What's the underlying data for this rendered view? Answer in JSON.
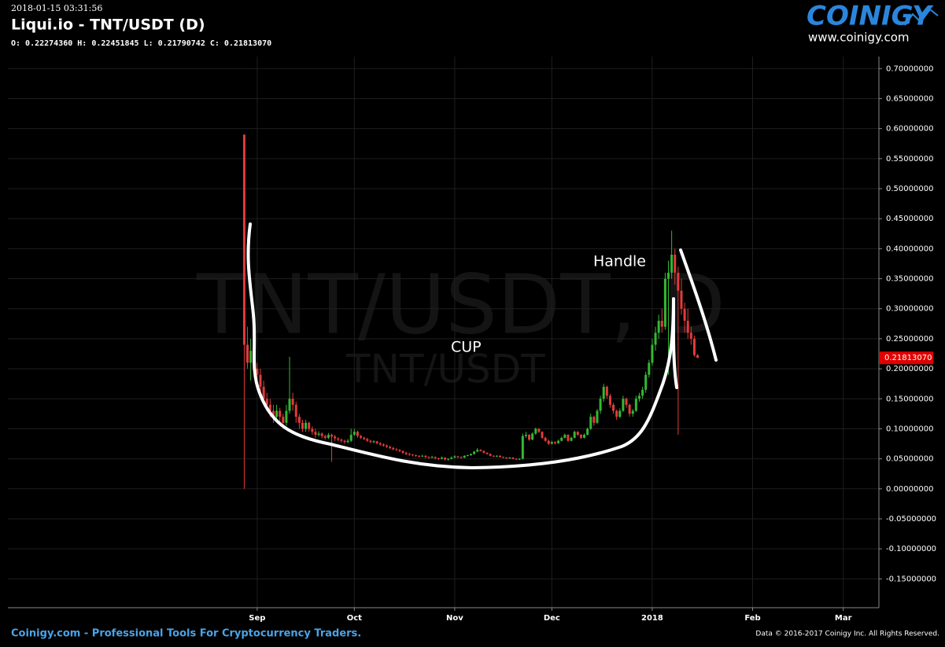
{
  "header": {
    "timestamp": "2018-01-15 03:31:56",
    "title": "Liqui.io - TNT/USDT (D)",
    "ohlc_line": "O: 0.22274360 H: 0.22451845 L: 0.21790742 C: 0.21813070"
  },
  "logo": {
    "brand": "COINIGY",
    "url": "www.coinigy.com"
  },
  "footer": {
    "left": "Coinigy.com - Professional Tools For Cryptocurrency Traders.",
    "right": "Data © 2016-2017 Coinigy Inc. All Rights Reserved."
  },
  "chart_data": {
    "type": "candlestick",
    "watermark": "TNT/USDT, D",
    "watermark_sub": "TNT/USDT",
    "annotations": [
      "Handle",
      "CUP"
    ],
    "up_color": "#33b833",
    "down_color": "#e33b3b",
    "grid": true,
    "last_price_label": "0.21813070",
    "xlim": [
      "2017-06-16",
      "2018-03-12"
    ],
    "xticks": [
      {
        "value": "2017-09-01",
        "label": "Sep"
      },
      {
        "value": "2017-10-01",
        "label": "Oct"
      },
      {
        "value": "2017-11-01",
        "label": "Nov"
      },
      {
        "value": "2017-12-01",
        "label": "Dec"
      },
      {
        "value": "2018-01-01",
        "label": "2018"
      },
      {
        "value": "2018-02-01",
        "label": "Feb"
      },
      {
        "value": "2018-03-01",
        "label": "Mar"
      }
    ],
    "ylim": [
      -0.198,
      0.72
    ],
    "yticks": [
      {
        "value": 0.7,
        "label": "0.70000000"
      },
      {
        "value": 0.65,
        "label": "0.65000000"
      },
      {
        "value": 0.6,
        "label": "0.60000000"
      },
      {
        "value": 0.55,
        "label": "0.55000000"
      },
      {
        "value": 0.5,
        "label": "0.50000000"
      },
      {
        "value": 0.45,
        "label": "0.45000000"
      },
      {
        "value": 0.4,
        "label": "0.40000000"
      },
      {
        "value": 0.35,
        "label": "0.35000000"
      },
      {
        "value": 0.3,
        "label": "0.30000000"
      },
      {
        "value": 0.25,
        "label": "0.25000000"
      },
      {
        "value": 0.2,
        "label": "0.20000000"
      },
      {
        "value": 0.15,
        "label": "0.15000000"
      },
      {
        "value": 0.1,
        "label": "0.10000000"
      },
      {
        "value": 0.05,
        "label": "0.05000000"
      },
      {
        "value": 0,
        "label": "0.00000000"
      },
      {
        "value": -0.05,
        "label": "-0.05000000"
      },
      {
        "value": -0.1,
        "label": "-0.10000000"
      },
      {
        "value": -0.15,
        "label": "-0.15000000"
      }
    ],
    "x": [
      "2017-08-28",
      "2017-08-29",
      "2017-08-30",
      "2017-08-31",
      "2017-09-01",
      "2017-09-02",
      "2017-09-03",
      "2017-09-04",
      "2017-09-05",
      "2017-09-06",
      "2017-09-07",
      "2017-09-08",
      "2017-09-09",
      "2017-09-10",
      "2017-09-11",
      "2017-09-12",
      "2017-09-13",
      "2017-09-14",
      "2017-09-15",
      "2017-09-16",
      "2017-09-17",
      "2017-09-18",
      "2017-09-19",
      "2017-09-20",
      "2017-09-21",
      "2017-09-22",
      "2017-09-23",
      "2017-09-24",
      "2017-09-25",
      "2017-09-26",
      "2017-09-27",
      "2017-09-28",
      "2017-09-29",
      "2017-09-30",
      "2017-10-01",
      "2017-10-02",
      "2017-10-03",
      "2017-10-04",
      "2017-10-05",
      "2017-10-06",
      "2017-10-07",
      "2017-10-08",
      "2017-10-09",
      "2017-10-10",
      "2017-10-11",
      "2017-10-12",
      "2017-10-13",
      "2017-10-14",
      "2017-10-15",
      "2017-10-16",
      "2017-10-17",
      "2017-10-18",
      "2017-10-19",
      "2017-10-20",
      "2017-10-21",
      "2017-10-22",
      "2017-10-23",
      "2017-10-24",
      "2017-10-25",
      "2017-10-26",
      "2017-10-27",
      "2017-10-28",
      "2017-10-29",
      "2017-10-30",
      "2017-10-31",
      "2017-11-01",
      "2017-11-02",
      "2017-11-03",
      "2017-11-04",
      "2017-11-05",
      "2017-11-06",
      "2017-11-07",
      "2017-11-08",
      "2017-11-09",
      "2017-11-10",
      "2017-11-11",
      "2017-11-12",
      "2017-11-13",
      "2017-11-14",
      "2017-11-15",
      "2017-11-16",
      "2017-11-17",
      "2017-11-18",
      "2017-11-19",
      "2017-11-20",
      "2017-11-21",
      "2017-11-22",
      "2017-11-23",
      "2017-11-24",
      "2017-11-25",
      "2017-11-26",
      "2017-11-27",
      "2017-11-28",
      "2017-11-29",
      "2017-11-30",
      "2017-12-01",
      "2017-12-02",
      "2017-12-03",
      "2017-12-04",
      "2017-12-05",
      "2017-12-06",
      "2017-12-07",
      "2017-12-08",
      "2017-12-09",
      "2017-12-10",
      "2017-12-11",
      "2017-12-12",
      "2017-12-13",
      "2017-12-14",
      "2017-12-15",
      "2017-12-16",
      "2017-12-17",
      "2017-12-18",
      "2017-12-19",
      "2017-12-20",
      "2017-12-21",
      "2017-12-22",
      "2017-12-23",
      "2017-12-24",
      "2017-12-25",
      "2017-12-26",
      "2017-12-27",
      "2017-12-28",
      "2017-12-29",
      "2017-12-30",
      "2017-12-31",
      "2018-01-01",
      "2018-01-02",
      "2018-01-03",
      "2018-01-04",
      "2018-01-05",
      "2018-01-06",
      "2018-01-07",
      "2018-01-08",
      "2018-01-09",
      "2018-01-10",
      "2018-01-11",
      "2018-01-12",
      "2018-01-13",
      "2018-01-14",
      "2018-01-15"
    ],
    "candles": [
      [
        0.59,
        0.59,
        0,
        0.24
      ],
      [
        0.24,
        0.27,
        0.2,
        0.21
      ],
      [
        0.21,
        0.25,
        0.18,
        0.23
      ],
      [
        0.23,
        0.24,
        0.19,
        0.2
      ],
      [
        0.2,
        0.21,
        0.18,
        0.19
      ],
      [
        0.19,
        0.2,
        0.16,
        0.17
      ],
      [
        0.17,
        0.18,
        0.14,
        0.15
      ],
      [
        0.15,
        0.16,
        0.13,
        0.14
      ],
      [
        0.14,
        0.15,
        0.12,
        0.13
      ],
      [
        0.13,
        0.14,
        0.11,
        0.12
      ],
      [
        0.12,
        0.14,
        0.115,
        0.13
      ],
      [
        0.13,
        0.135,
        0.11,
        0.12
      ],
      [
        0.12,
        0.125,
        0.1,
        0.11
      ],
      [
        0.11,
        0.14,
        0.105,
        0.13
      ],
      [
        0.13,
        0.22,
        0.125,
        0.15
      ],
      [
        0.15,
        0.16,
        0.13,
        0.14
      ],
      [
        0.14,
        0.145,
        0.11,
        0.12
      ],
      [
        0.12,
        0.125,
        0.1,
        0.11
      ],
      [
        0.11,
        0.115,
        0.095,
        0.1
      ],
      [
        0.1,
        0.115,
        0.095,
        0.11
      ],
      [
        0.11,
        0.112,
        0.095,
        0.1
      ],
      [
        0.1,
        0.104,
        0.09,
        0.095
      ],
      [
        0.095,
        0.1,
        0.085,
        0.09
      ],
      [
        0.09,
        0.096,
        0.087,
        0.092
      ],
      [
        0.092,
        0.094,
        0.084,
        0.088
      ],
      [
        0.088,
        0.09,
        0.082,
        0.085
      ],
      [
        0.085,
        0.093,
        0.083,
        0.09
      ],
      [
        0.09,
        0.092,
        0.045,
        0.087
      ],
      [
        0.087,
        0.09,
        0.08,
        0.084
      ],
      [
        0.084,
        0.086,
        0.079,
        0.082
      ],
      [
        0.082,
        0.084,
        0.077,
        0.08
      ],
      [
        0.08,
        0.082,
        0.075,
        0.078
      ],
      [
        0.078,
        0.083,
        0.076,
        0.08
      ],
      [
        0.08,
        0.1,
        0.078,
        0.09
      ],
      [
        0.09,
        0.1,
        0.088,
        0.095
      ],
      [
        0.095,
        0.097,
        0.085,
        0.088
      ],
      [
        0.088,
        0.09,
        0.083,
        0.085
      ],
      [
        0.085,
        0.087,
        0.081,
        0.083
      ],
      [
        0.083,
        0.085,
        0.078,
        0.08
      ],
      [
        0.08,
        0.082,
        0.076,
        0.078
      ],
      [
        0.078,
        0.081,
        0.076,
        0.079
      ],
      [
        0.079,
        0.08,
        0.074,
        0.076
      ],
      [
        0.076,
        0.078,
        0.072,
        0.074
      ],
      [
        0.074,
        0.076,
        0.07,
        0.072
      ],
      [
        0.072,
        0.074,
        0.068,
        0.07
      ],
      [
        0.07,
        0.072,
        0.066,
        0.068
      ],
      [
        0.068,
        0.07,
        0.064,
        0.066
      ],
      [
        0.066,
        0.068,
        0.063,
        0.065
      ],
      [
        0.065,
        0.066,
        0.061,
        0.063
      ],
      [
        0.063,
        0.064,
        0.058,
        0.06
      ],
      [
        0.06,
        0.062,
        0.056,
        0.058
      ],
      [
        0.058,
        0.06,
        0.055,
        0.057
      ],
      [
        0.057,
        0.058,
        0.054,
        0.056
      ],
      [
        0.056,
        0.057,
        0.053,
        0.055
      ],
      [
        0.055,
        0.056,
        0.052,
        0.054
      ],
      [
        0.054,
        0.057,
        0.053,
        0.055
      ],
      [
        0.055,
        0.056,
        0.051,
        0.053
      ],
      [
        0.053,
        0.054,
        0.05,
        0.052
      ],
      [
        0.052,
        0.055,
        0.051,
        0.053
      ],
      [
        0.053,
        0.054,
        0.049,
        0.051
      ],
      [
        0.051,
        0.052,
        0.048,
        0.05
      ],
      [
        0.05,
        0.054,
        0.049,
        0.052
      ],
      [
        0.052,
        0.053,
        0.047,
        0.049
      ],
      [
        0.049,
        0.051,
        0.047,
        0.05
      ],
      [
        0.05,
        0.054,
        0.049,
        0.052
      ],
      [
        0.052,
        0.056,
        0.051,
        0.054
      ],
      [
        0.054,
        0.055,
        0.051,
        0.053
      ],
      [
        0.053,
        0.054,
        0.05,
        0.052
      ],
      [
        0.052,
        0.056,
        0.051,
        0.055
      ],
      [
        0.055,
        0.057,
        0.054,
        0.056
      ],
      [
        0.056,
        0.059,
        0.055,
        0.058
      ],
      [
        0.058,
        0.063,
        0.057,
        0.062
      ],
      [
        0.062,
        0.068,
        0.061,
        0.065
      ],
      [
        0.065,
        0.066,
        0.062,
        0.063
      ],
      [
        0.063,
        0.064,
        0.059,
        0.06
      ],
      [
        0.06,
        0.061,
        0.057,
        0.058
      ],
      [
        0.058,
        0.059,
        0.054,
        0.055
      ],
      [
        0.055,
        0.056,
        0.053,
        0.054
      ],
      [
        0.054,
        0.056,
        0.053,
        0.055
      ],
      [
        0.055,
        0.056,
        0.052,
        0.053
      ],
      [
        0.053,
        0.054,
        0.051,
        0.052
      ],
      [
        0.052,
        0.053,
        0.05,
        0.051
      ],
      [
        0.051,
        0.053,
        0.05,
        0.052
      ],
      [
        0.052,
        0.053,
        0.049,
        0.05
      ],
      [
        0.05,
        0.051,
        0.048,
        0.049
      ],
      [
        0.049,
        0.051,
        0.048,
        0.05
      ],
      [
        0.05,
        0.092,
        0.049,
        0.088
      ],
      [
        0.088,
        0.095,
        0.085,
        0.09
      ],
      [
        0.09,
        0.091,
        0.08,
        0.082
      ],
      [
        0.082,
        0.094,
        0.081,
        0.092
      ],
      [
        0.092,
        0.102,
        0.09,
        0.1
      ],
      [
        0.1,
        0.101,
        0.093,
        0.095
      ],
      [
        0.095,
        0.096,
        0.083,
        0.085
      ],
      [
        0.085,
        0.087,
        0.078,
        0.08
      ],
      [
        0.08,
        0.082,
        0.073,
        0.075
      ],
      [
        0.075,
        0.08,
        0.074,
        0.078
      ],
      [
        0.078,
        0.079,
        0.074,
        0.076
      ],
      [
        0.076,
        0.082,
        0.075,
        0.08
      ],
      [
        0.08,
        0.087,
        0.079,
        0.085
      ],
      [
        0.085,
        0.092,
        0.084,
        0.09
      ],
      [
        0.09,
        0.091,
        0.078,
        0.08
      ],
      [
        0.08,
        0.087,
        0.079,
        0.085
      ],
      [
        0.085,
        0.097,
        0.084,
        0.095
      ],
      [
        0.095,
        0.096,
        0.088,
        0.09
      ],
      [
        0.09,
        0.091,
        0.083,
        0.085
      ],
      [
        0.085,
        0.092,
        0.084,
        0.09
      ],
      [
        0.09,
        0.102,
        0.089,
        0.1
      ],
      [
        0.1,
        0.125,
        0.098,
        0.12
      ],
      [
        0.12,
        0.122,
        0.105,
        0.11
      ],
      [
        0.11,
        0.133,
        0.108,
        0.13
      ],
      [
        0.13,
        0.155,
        0.125,
        0.15
      ],
      [
        0.15,
        0.175,
        0.145,
        0.17
      ],
      [
        0.17,
        0.172,
        0.15,
        0.155
      ],
      [
        0.155,
        0.158,
        0.135,
        0.14
      ],
      [
        0.14,
        0.143,
        0.125,
        0.13
      ],
      [
        0.13,
        0.132,
        0.115,
        0.12
      ],
      [
        0.12,
        0.134,
        0.118,
        0.13
      ],
      [
        0.13,
        0.155,
        0.128,
        0.15
      ],
      [
        0.15,
        0.152,
        0.135,
        0.14
      ],
      [
        0.14,
        0.142,
        0.12,
        0.125
      ],
      [
        0.125,
        0.133,
        0.12,
        0.13
      ],
      [
        0.13,
        0.155,
        0.128,
        0.15
      ],
      [
        0.15,
        0.16,
        0.145,
        0.155
      ],
      [
        0.155,
        0.17,
        0.15,
        0.165
      ],
      [
        0.165,
        0.195,
        0.16,
        0.19
      ],
      [
        0.19,
        0.215,
        0.185,
        0.21
      ],
      [
        0.21,
        0.25,
        0.205,
        0.24
      ],
      [
        0.24,
        0.27,
        0.23,
        0.26
      ],
      [
        0.26,
        0.29,
        0.25,
        0.28
      ],
      [
        0.28,
        0.3,
        0.26,
        0.27
      ],
      [
        0.27,
        0.36,
        0.265,
        0.35
      ],
      [
        0.35,
        0.38,
        0.19,
        0.36
      ],
      [
        0.36,
        0.43,
        0.35,
        0.39
      ],
      [
        0.39,
        0.4,
        0.34,
        0.36
      ],
      [
        0.36,
        0.37,
        0.09,
        0.33
      ],
      [
        0.33,
        0.35,
        0.29,
        0.3
      ],
      [
        0.3,
        0.31,
        0.26,
        0.28
      ],
      [
        0.28,
        0.3,
        0.25,
        0.26
      ],
      [
        0.26,
        0.27,
        0.24,
        0.25
      ],
      [
        0.25,
        0.255,
        0.22,
        0.2227436
      ],
      [
        0.2227436,
        0.22451845,
        0.21790742,
        0.2181307
      ]
    ]
  }
}
